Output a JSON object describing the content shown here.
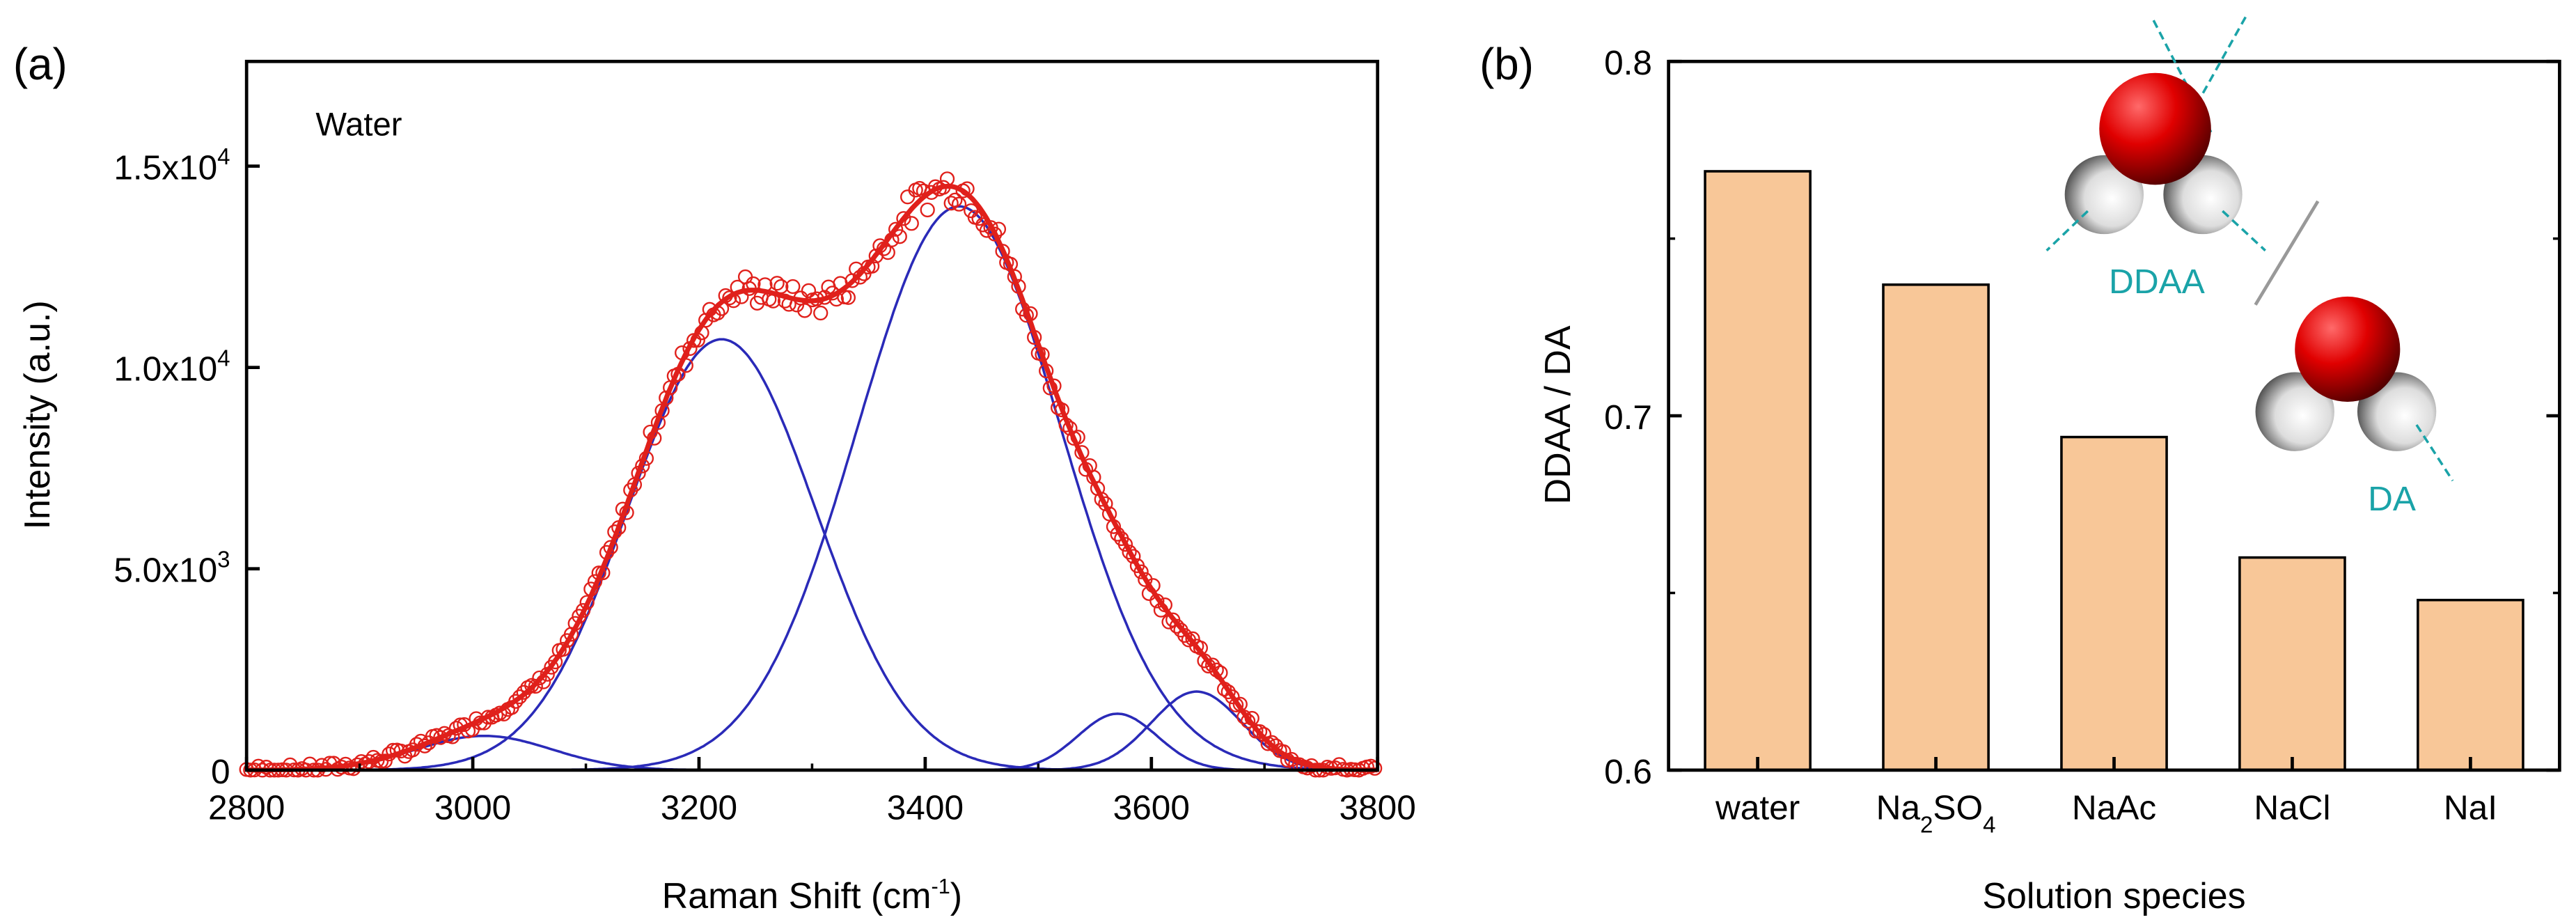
{
  "chart_data": [
    {
      "type": "line",
      "panel_label": "(a)",
      "annotation": "Water",
      "xlabel": "Raman Shift (cm",
      "xlabel_sup": "-1",
      "xlabel_end": ")",
      "ylabel": "Intensity (a.u.)",
      "xlim": [
        2800,
        3800
      ],
      "ylim": [
        0,
        17600
      ],
      "xticks": [
        2800,
        3000,
        3200,
        3400,
        3600,
        3800
      ],
      "yticks": [
        {
          "value": 0,
          "mant": "0",
          "exp": ""
        },
        {
          "value": 5000,
          "mant": "5.0x10",
          "exp": "3"
        },
        {
          "value": 10000,
          "mant": "1.0x10",
          "exp": "4"
        },
        {
          "value": 15000,
          "mant": "1.5x10",
          "exp": "4"
        }
      ],
      "series": [
        {
          "name": "measured",
          "style": "open-circles",
          "color": "#e0201b"
        },
        {
          "name": "fit envelope",
          "style": "line",
          "color": "#e0201b"
        },
        {
          "name": "gaussian components",
          "style": "line",
          "color": "#2a2ab8",
          "components": [
            {
              "center": 3010,
              "amplitude": 850,
              "sigma": 60
            },
            {
              "center": 3220,
              "amplitude": 10700,
              "sigma": 83
            },
            {
              "center": 3430,
              "amplitude": 14000,
              "sigma": 90
            },
            {
              "center": 3570,
              "amplitude": 1400,
              "sigma": 35
            },
            {
              "center": 3640,
              "amplitude": 1950,
              "sigma": 40
            }
          ]
        }
      ]
    },
    {
      "type": "bar",
      "panel_label": "(b)",
      "xlabel": "Solution species",
      "ylabel": "DDAA / DA",
      "ylim": [
        0.6,
        0.8
      ],
      "yticks": [
        "0.6",
        "0.7",
        "0.8"
      ],
      "categories": [
        {
          "main": "water",
          "sub1": "",
          "mid": "",
          "sub2": ""
        },
        {
          "main": "Na",
          "sub1": "2",
          "mid": "SO",
          "sub2": "4"
        },
        {
          "main": "NaAc",
          "sub1": "",
          "mid": "",
          "sub2": ""
        },
        {
          "main": "NaCl",
          "sub1": "",
          "mid": "",
          "sub2": ""
        },
        {
          "main": "NaI",
          "sub1": "",
          "mid": "",
          "sub2": ""
        }
      ],
      "values": [
        0.769,
        0.737,
        0.694,
        0.66,
        0.648
      ],
      "bar_color": "#f8c798",
      "inset_labels": {
        "top": "DDAA",
        "bottom": "DA"
      },
      "inset_color": "#1aa3a8"
    }
  ]
}
